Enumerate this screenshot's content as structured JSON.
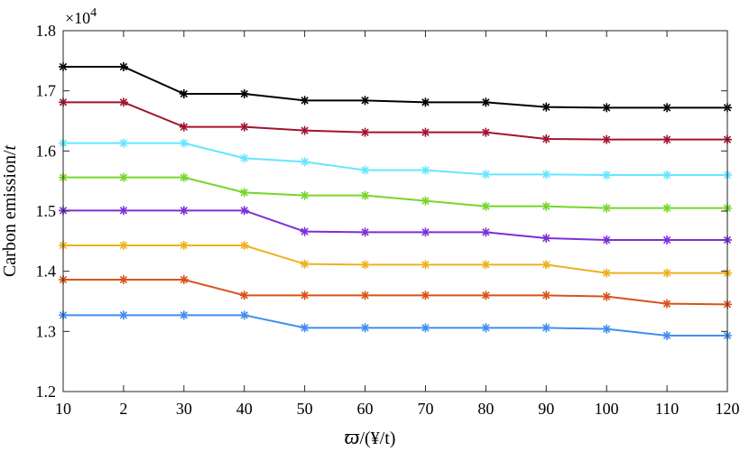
{
  "chart_data": {
    "type": "line",
    "title": "",
    "xlabel": "ϖ/(¥/t)",
    "xlabel_symbol": "ϖ",
    "xlabel_unit": "/(¥/t)",
    "ylabel": "Carbon emission/t",
    "ylabel_text": "Carbon emission/",
    "ylabel_unit": "t",
    "y_multiplier": "×10",
    "y_multiplier_exponent": "4",
    "categories": [
      "10",
      "2",
      "30",
      "40",
      "50",
      "60",
      "70",
      "80",
      "90",
      "100",
      "110",
      "120"
    ],
    "y_ticks": [
      "1.2",
      "1.3",
      "1.4",
      "1.5",
      "1.6",
      "1.7",
      "1.8"
    ],
    "ylim": [
      1.2,
      1.8
    ],
    "grid": false,
    "marker": "asterisk",
    "series": [
      {
        "color": "#000000",
        "values": [
          1.74,
          1.74,
          1.695,
          1.695,
          1.684,
          1.684,
          1.681,
          1.681,
          1.673,
          1.672,
          1.672,
          1.672
        ]
      },
      {
        "color": "#A2142F",
        "values": [
          1.681,
          1.681,
          1.64,
          1.64,
          1.634,
          1.631,
          1.631,
          1.631,
          1.62,
          1.619,
          1.619,
          1.619
        ]
      },
      {
        "color": "#66E6FF",
        "values": [
          1.613,
          1.613,
          1.613,
          1.588,
          1.582,
          1.568,
          1.568,
          1.561,
          1.561,
          1.56,
          1.56,
          1.56
        ]
      },
      {
        "color": "#77D62A",
        "values": [
          1.556,
          1.556,
          1.556,
          1.531,
          1.526,
          1.526,
          1.517,
          1.508,
          1.508,
          1.505,
          1.505,
          1.505
        ]
      },
      {
        "color": "#7E2FD6",
        "values": [
          1.501,
          1.501,
          1.501,
          1.501,
          1.466,
          1.465,
          1.465,
          1.465,
          1.455,
          1.452,
          1.452,
          1.452
        ]
      },
      {
        "color": "#EDB120",
        "values": [
          1.443,
          1.443,
          1.443,
          1.443,
          1.412,
          1.411,
          1.411,
          1.411,
          1.411,
          1.397,
          1.397,
          1.397
        ]
      },
      {
        "color": "#D95319",
        "values": [
          1.386,
          1.386,
          1.386,
          1.36,
          1.36,
          1.36,
          1.36,
          1.36,
          1.36,
          1.358,
          1.346,
          1.345
        ]
      },
      {
        "color": "#3E8EF0",
        "values": [
          1.327,
          1.327,
          1.327,
          1.327,
          1.306,
          1.306,
          1.306,
          1.306,
          1.306,
          1.304,
          1.293,
          1.293
        ]
      }
    ]
  }
}
